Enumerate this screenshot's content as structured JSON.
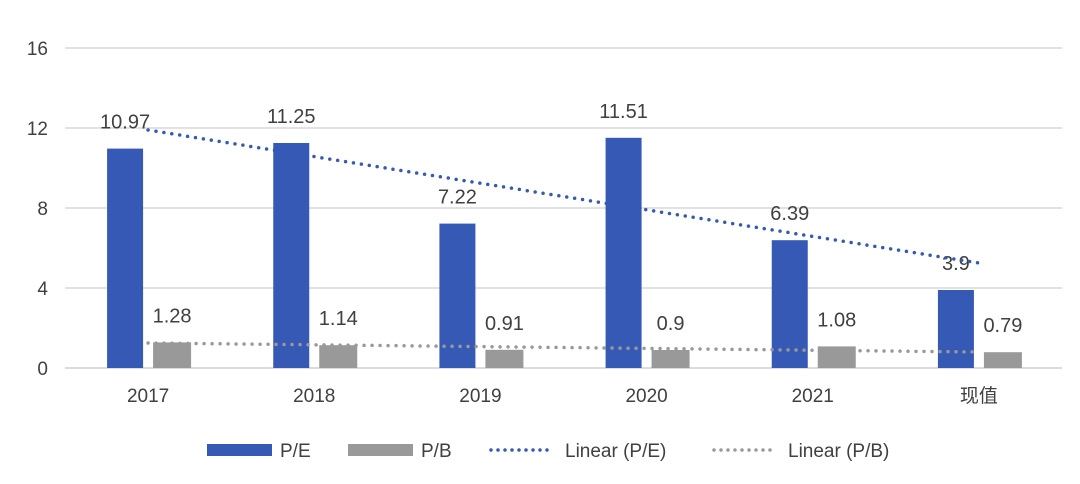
{
  "chart_data": {
    "type": "bar",
    "title": "",
    "xlabel": "",
    "ylabel": "",
    "ylim": [
      0,
      16
    ],
    "yticks": [
      0,
      4,
      8,
      12,
      16
    ],
    "categories": [
      "2017",
      "2018",
      "2019",
      "2020",
      "2021",
      "现值"
    ],
    "grid": true,
    "legend_position": "bottom",
    "series": [
      {
        "name": "P/E",
        "values": [
          10.97,
          11.25,
          7.22,
          11.51,
          6.39,
          3.9
        ],
        "color": "#3559B5",
        "labels": [
          "10.97",
          "11.25",
          "7.22",
          "11.51",
          "6.39",
          "3.9"
        ]
      },
      {
        "name": "P/B",
        "values": [
          1.28,
          1.14,
          0.91,
          0.9,
          1.08,
          0.79
        ],
        "color": "#999999",
        "labels": [
          "1.28",
          "1.14",
          "0.91",
          "0.9",
          "1.08",
          "0.79"
        ]
      }
    ],
    "trendlines": [
      {
        "name": "Linear (P/E)",
        "start": 11.9,
        "end": 5.25,
        "color": "#3559B5"
      },
      {
        "name": "Linear (P/B)",
        "start": 1.25,
        "end": 0.8,
        "color": "#999999"
      }
    ]
  }
}
